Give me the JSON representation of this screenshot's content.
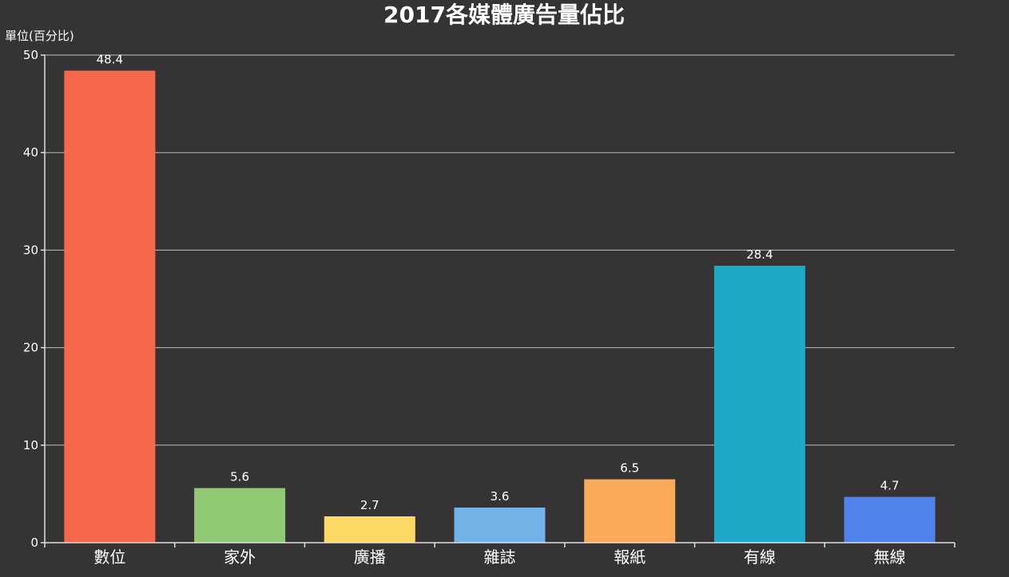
{
  "chart_data": {
    "type": "bar",
    "title": "2017各媒體廣告量佔比",
    "ylabel": "單位(百分比)",
    "xlabel": "",
    "categories": [
      "數位",
      "家外",
      "廣播",
      "雜誌",
      "報紙",
      "有線",
      "無線"
    ],
    "values": [
      48.4,
      5.6,
      2.7,
      3.6,
      6.5,
      28.4,
      4.7
    ],
    "value_labels": [
      "48.4",
      "5.6",
      "2.7",
      "3.6",
      "6.5",
      "28.4",
      "4.7"
    ],
    "colors": [
      "#f6674c",
      "#90c973",
      "#ffd966",
      "#74b2e8",
      "#fcaa5a",
      "#1ea9c9",
      "#4f83ea"
    ],
    "ylim": [
      0,
      50
    ],
    "yticks": [
      0,
      10,
      20,
      30,
      40,
      50
    ],
    "grid": true,
    "legend": "none"
  }
}
